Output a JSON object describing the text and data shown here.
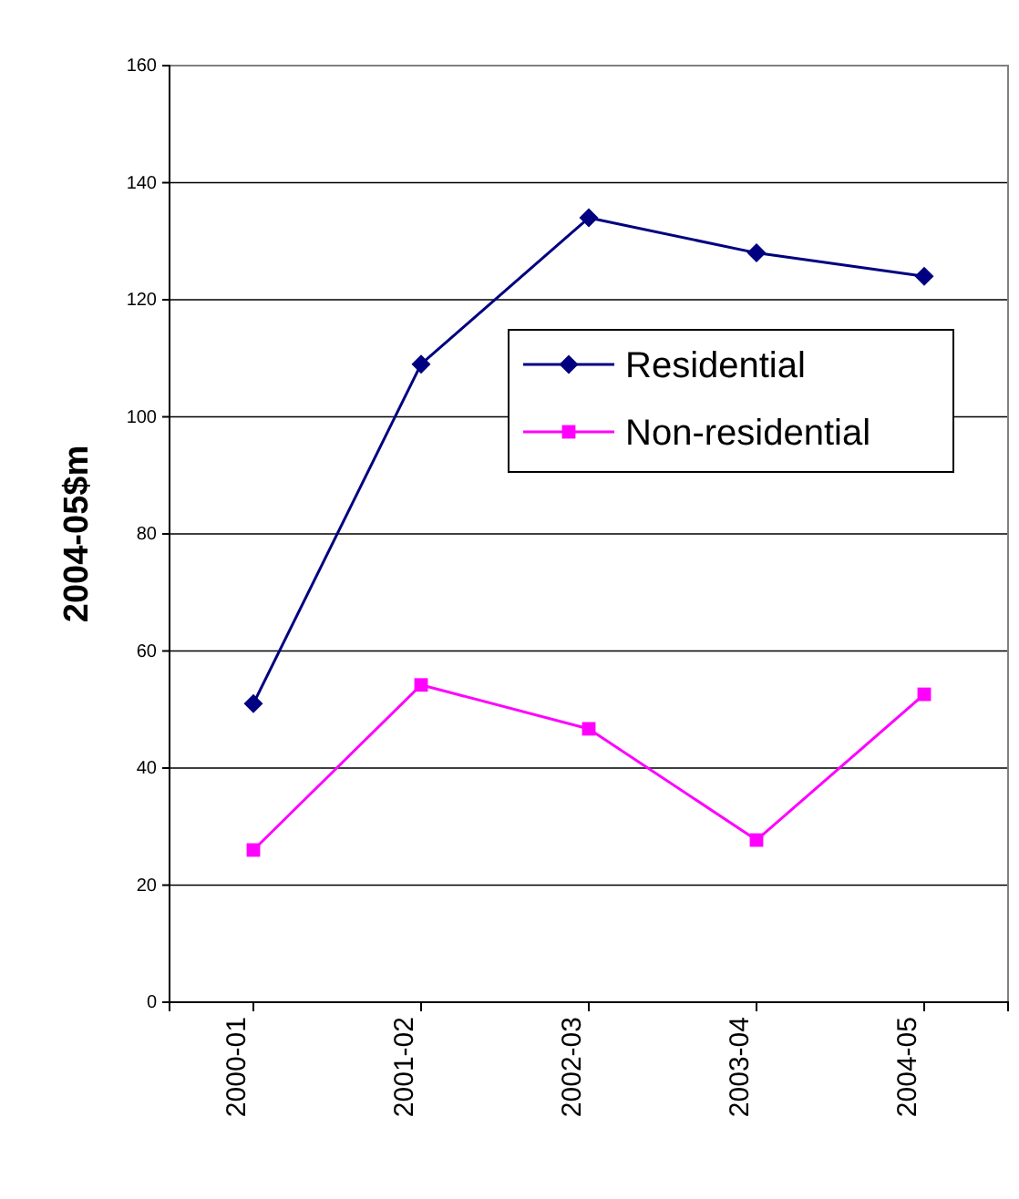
{
  "chart_data": {
    "type": "line",
    "ylabel": "2004-05$m",
    "categories": [
      "2000-01",
      "2001-02",
      "2002-03",
      "2003-04",
      "2004-05"
    ],
    "series": [
      {
        "name": "Residential",
        "color": "#000080",
        "marker": "diamond",
        "values": [
          51,
          109,
          134,
          128,
          124
        ]
      },
      {
        "name": "Non-residential",
        "color": "#ff00ff",
        "marker": "square",
        "values": [
          26,
          54.2,
          46.7,
          27.7,
          52.6
        ]
      }
    ],
    "ylim": [
      0,
      160
    ],
    "yticks": [
      0,
      20,
      40,
      60,
      80,
      100,
      120,
      140,
      160
    ],
    "grid": "y",
    "legend": "top right"
  }
}
